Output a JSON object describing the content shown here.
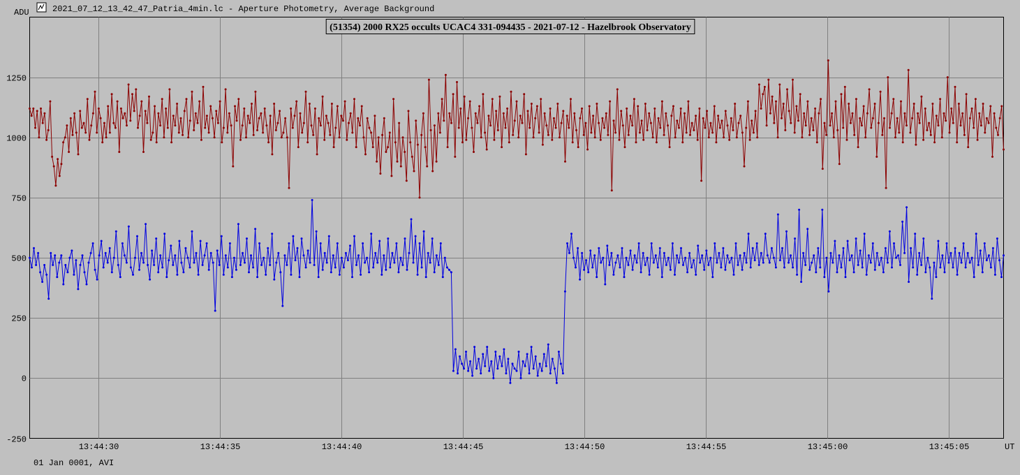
{
  "window": {
    "title": "2021_07_12_13_42_47_Patria_4min.lc - Aperture Photometry, Average Background",
    "icon": "lightcurve-app-icon"
  },
  "footer": {
    "date_text": "01 Jan 0001, AVI",
    "time_unit": "UT"
  },
  "chart_data": {
    "type": "line",
    "title": "(51354) 2000 RX25 occults UCAC4 331-094435 - 2021-07-12 - Hazelbrook Observatory",
    "ylabel": "ADU",
    "xlabel": "UT",
    "xlim": [
      "13:44:27.17",
      "13:45:07.27"
    ],
    "ylim": [
      -250,
      1500
    ],
    "yticks": [
      -250,
      0,
      250,
      500,
      750,
      1000,
      1250
    ],
    "xticks": [
      "13:44:30",
      "13:44:35",
      "13:44:40",
      "13:44:45",
      "13:44:50",
      "13:44:55",
      "13:45:00",
      "13:45:05"
    ],
    "grid": true,
    "sample_interval_s": 0.08,
    "series": [
      {
        "name": "",
        "color": "#8b0000",
        "y": [
          1120,
          1090,
          1120,
          1040,
          1110,
          1000,
          1120,
          1060,
          1100,
          990,
          1030,
          1150,
          920,
          880,
          800,
          910,
          840,
          890,
          980,
          1000,
          1050,
          940,
          1080,
          1010,
          1100,
          1020,
          930,
          1110,
          1040,
          1060,
          1020,
          1160,
          990,
          1050,
          1100,
          1190,
          1020,
          1120,
          1080,
          980,
          1060,
          1000,
          1130,
          1020,
          1180,
          1060,
          1040,
          1150,
          940,
          1120,
          1080,
          1100,
          1050,
          1220,
          1070,
          1180,
          1110,
          1200,
          1040,
          1090,
          1150,
          940,
          1110,
          1060,
          1170,
          990,
          1020,
          1130,
          980,
          1100,
          1050,
          1160,
          1000,
          1120,
          1040,
          1200,
          980,
          1090,
          1050,
          1140,
          1020,
          1080,
          1010,
          1110,
          1160,
          1000,
          1070,
          1190,
          1030,
          1100,
          1060,
          1150,
          990,
          1210,
          1040,
          1090,
          1020,
          1130,
          1080,
          1000,
          1110,
          1060,
          1150,
          980,
          1040,
          1200,
          1020,
          1100,
          1050,
          880,
          1130,
          1070,
          1160,
          990,
          1050,
          1120,
          1000,
          1090,
          1060,
          1140,
          1010,
          1190,
          1030,
          1080,
          1100,
          1020,
          1120,
          1050,
          980,
          1090,
          930,
          1140,
          1030,
          1060,
          1110,
          1000,
          1020,
          1080,
          1000,
          790,
          1120,
          1040,
          1090,
          1150,
          960,
          1100,
          1020,
          1060,
          1190,
          980,
          1140,
          1050,
          1010,
          1120,
          930,
          1080,
          1050,
          1170,
          990,
          1090,
          1060,
          1010,
          1140,
          960,
          1040,
          1130,
          1000,
          1090,
          1070,
          1150,
          990,
          1060,
          1100,
          1020,
          1160,
          960,
          1080,
          1050,
          1130,
          1000,
          930,
          1080,
          1040,
          1020,
          960,
          1090,
          900,
          1000,
          850,
          1010,
          1080,
          940,
          960,
          1020,
          840,
          1160,
          980,
          900,
          1060,
          880,
          1000,
          940,
          820,
          1110,
          980,
          920,
          860,
          1070,
          970,
          750,
          1010,
          1100,
          960,
          880,
          1240,
          1030,
          860,
          1050,
          900,
          1100,
          1020,
          1160,
          1070,
          1260,
          960,
          1100,
          1060,
          1180,
          920,
          1230,
          1040,
          1120,
          980,
          1170,
          990,
          1080,
          1150,
          1040,
          940,
          1100,
          1060,
          1130,
          1000,
          1180,
          1020,
          950,
          1090,
          1050,
          1160,
          990,
          1110,
          1030,
          1170,
          960,
          1100,
          1040,
          1120,
          980,
          1190,
          1010,
          1070,
          1150,
          1000,
          1090,
          1060,
          1180,
          930,
          1110,
          1040,
          1140,
          1000,
          1080,
          1130,
          1020,
          1160,
          970,
          1100,
          1050,
          1010,
          1120,
          990,
          1080,
          1040,
          1140,
          1000,
          1060,
          1110,
          900,
          1090,
          1040,
          1160,
          980,
          1100,
          1030,
          960,
          1080,
          1120,
          1010,
          1060,
          950,
          1130,
          1020,
          1090,
          1000,
          1140,
          1060,
          990,
          1080,
          1040,
          1100,
          1010,
          1150,
          780,
          1070,
          1020,
          1200,
          990,
          1110,
          1050,
          960,
          1120,
          1010,
          1090,
          1050,
          1160,
          980,
          1130,
          1020,
          1070,
          990,
          1140,
          1030,
          1100,
          1060,
          1000,
          1120,
          980,
          1080,
          1040,
          1150,
          1010,
          1100,
          1050,
          960,
          1090,
          1130,
          1000,
          1070,
          1040,
          1120,
          980,
          1100,
          1020,
          1150,
          1010,
          1060,
          1030,
          1090,
          990,
          1120,
          820,
          1080,
          1040,
          1110,
          1000,
          1060,
          1020,
          1130,
          980,
          1090,
          1040,
          1070,
          1000,
          1110,
          1050,
          990,
          1080,
          1030,
          1140,
          1000,
          1060,
          1090,
          1020,
          880,
          1040,
          1150,
          990,
          1070,
          1020,
          1110,
          1000,
          1220,
          1120,
          1180,
          1210,
          1050,
          1240,
          1100,
          1170,
          1060,
          1150,
          1000,
          1220,
          1080,
          1140,
          1030,
          1200,
          1110,
          1060,
          1240,
          1020,
          1130,
          1070,
          1180,
          1000,
          1100,
          1050,
          1150,
          1010,
          1080,
          1030,
          1120,
          980,
          1100,
          1160,
          870,
          1060,
          1010,
          1320,
          1050,
          1100,
          1000,
          1150,
          1030,
          890,
          1180,
          1040,
          1210,
          990,
          1140,
          1060,
          1100,
          1010,
          1160,
          960,
          1080,
          1050,
          1130,
          1000,
          1100,
          1200,
          1040,
          1080,
          1140,
          920,
          1060,
          1190,
          1010,
          1080,
          790,
          1250,
          1040,
          1100,
          1160,
          1000,
          1080,
          1020,
          1150,
          980,
          1100,
          1050,
          1280,
          1020,
          1080,
          1140,
          970,
          1100,
          1060,
          1170,
          990,
          1120,
          1030,
          1060,
          1010,
          1140,
          980,
          1090,
          1050,
          1160,
          1000,
          1100,
          1070,
          1250,
          1020,
          1120,
          1060,
          1210,
          980,
          1140,
          1050,
          1100,
          1010,
          1180,
          960,
          1080,
          1120,
          1040,
          1160,
          990,
          1100,
          1050,
          1140,
          1020,
          1080,
          1060,
          1130,
          920,
          1100,
          1040,
          1010,
          1080,
          1130,
          950
        ]
      },
      {
        "name": "",
        "color": "#0000e0",
        "y": [
          500,
          460,
          540,
          470,
          520,
          440,
          400,
          470,
          430,
          330,
          520,
          470,
          510,
          420,
          480,
          510,
          390,
          470,
          440,
          500,
          530,
          430,
          490,
          370,
          470,
          510,
          440,
          390,
          480,
          520,
          560,
          450,
          410,
          510,
          570,
          460,
          520,
          480,
          540,
          440,
          500,
          610,
          470,
          420,
          560,
          510,
          480,
          630,
          460,
          430,
          500,
          590,
          450,
          520,
          480,
          640,
          470,
          410,
          530,
          470,
          580,
          440,
          510,
          460,
          600,
          420,
          490,
          550,
          470,
          510,
          430,
          570,
          480,
          440,
          540,
          500,
          460,
          610,
          480,
          520,
          430,
          570,
          470,
          510,
          560,
          450,
          520,
          480,
          280,
          530,
          470,
          590,
          430,
          510,
          460,
          560,
          420,
          500,
          450,
          640,
          470,
          520,
          480,
          580,
          440,
          510,
          460,
          620,
          420,
          560,
          470,
          500,
          430,
          540,
          470,
          600,
          410,
          480,
          520,
          440,
          300,
          510,
          470,
          560,
          430,
          590,
          490,
          540,
          420,
          580,
          510,
          460,
          530,
          480,
          740,
          470,
          610,
          420,
          560,
          450,
          520,
          480,
          590,
          440,
          510,
          460,
          560,
          430,
          500,
          460,
          520,
          490,
          550,
          420,
          590,
          470,
          510,
          430,
          560,
          480,
          500,
          440,
          600,
          460,
          520,
          480,
          570,
          430,
          510,
          450,
          580,
          460,
          520,
          480,
          560,
          440,
          500,
          470,
          580,
          450,
          520,
          660,
          480,
          590,
          430,
          560,
          460,
          610,
          420,
          520,
          480,
          580,
          440,
          510,
          470,
          560,
          420,
          500,
          460,
          450,
          440,
          30,
          120,
          20,
          90,
          60,
          40,
          110,
          30,
          70,
          10,
          130,
          40,
          80,
          20,
          100,
          50,
          130,
          30,
          70,
          0,
          110,
          40,
          90,
          50,
          120,
          20,
          80,
          -20,
          60,
          40,
          30,
          110,
          0,
          70,
          50,
          100,
          20,
          130,
          40,
          90,
          10,
          60,
          30,
          100,
          50,
          140,
          20,
          80,
          40,
          -20,
          110,
          60,
          20,
          360,
          560,
          520,
          600,
          500,
          460,
          540,
          410,
          520,
          450,
          490,
          440,
          530,
          460,
          510,
          420,
          540,
          480,
          500,
          390,
          550,
          470,
          520,
          430,
          480,
          510,
          460,
          540,
          420,
          500,
          470,
          530,
          450,
          510,
          480,
          560,
          440,
          520,
          470,
          500,
          430,
          560,
          480,
          510,
          460,
          540,
          420,
          520,
          470,
          500,
          450,
          560,
          430,
          510,
          480,
          540,
          470,
          500,
          440,
          520,
          460,
          490,
          430,
          550,
          480,
          510,
          450,
          530,
          470,
          500,
          420,
          560,
          480,
          520,
          460,
          540,
          450,
          510,
          480,
          500,
          430,
          560,
          470,
          510,
          450,
          520,
          480,
          600,
          460,
          540,
          490,
          560,
          470,
          520,
          480,
          600,
          510,
          480,
          540,
          500,
          460,
          680,
          490,
          540,
          460,
          610,
          480,
          510,
          460,
          580,
          430,
          700,
          400,
          520,
          470,
          620,
          450,
          480,
          510,
          440,
          540,
          460,
          700,
          420,
          500,
          360,
          520,
          480,
          570,
          440,
          510,
          460,
          540,
          420,
          570,
          490,
          510,
          440,
          580,
          470,
          530,
          460,
          600,
          430,
          510,
          480,
          560,
          450,
          520,
          470,
          500,
          440,
          540,
          480,
          610,
          460,
          560,
          500,
          510,
          470,
          650,
          520,
          710,
          400,
          540,
          460,
          600,
          430,
          520,
          470,
          580,
          440,
          500,
          460,
          330,
          480,
          420,
          570,
          460,
          510,
          440,
          560,
          480,
          520,
          460,
          540,
          430,
          520,
          480,
          560,
          460,
          520,
          480,
          500,
          420,
          600,
          470,
          530,
          440,
          560,
          490,
          510,
          460,
          540,
          430,
          580,
          490,
          420,
          510
        ]
      }
    ]
  }
}
